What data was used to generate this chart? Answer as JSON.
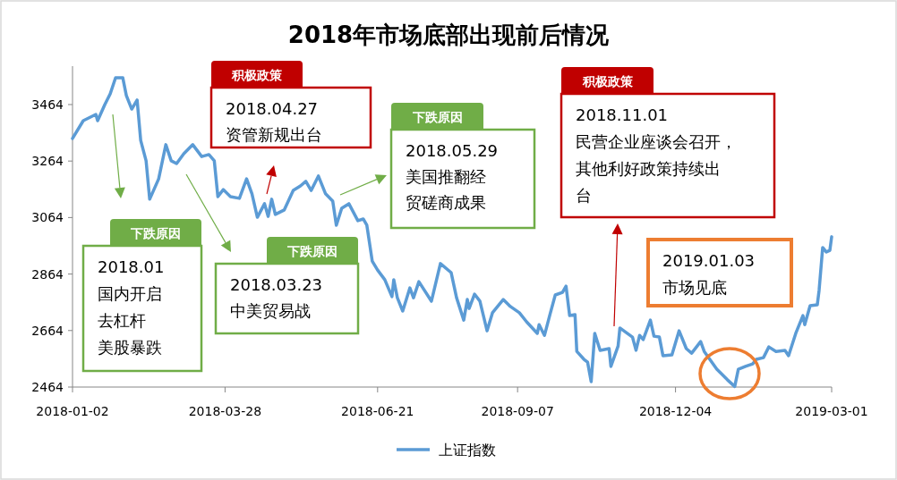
{
  "chart_data": {
    "type": "line",
    "title": "2018年市场底部出现前后情况",
    "x": [
      "2018-01-02",
      "2018-01-08",
      "2018-01-15",
      "2018-01-16",
      "2018-01-20",
      "2018-01-23",
      "2018-01-26",
      "2018-01-30",
      "2018-02-01",
      "2018-02-04",
      "2018-02-07",
      "2018-02-09",
      "2018-02-12",
      "2018-02-14",
      "2018-02-19",
      "2018-02-23",
      "2018-02-26",
      "2018-03-01",
      "2018-03-05",
      "2018-03-10",
      "2018-03-15",
      "2018-03-19",
      "2018-03-22",
      "2018-03-24",
      "2018-03-27",
      "2018-03-31",
      "2018-04-05",
      "2018-04-09",
      "2018-04-12",
      "2018-04-15",
      "2018-04-19",
      "2018-04-21",
      "2018-04-23",
      "2018-04-25",
      "2018-04-30",
      "2018-05-05",
      "2018-05-09",
      "2018-05-12",
      "2018-05-15",
      "2018-05-19",
      "2018-05-23",
      "2018-05-27",
      "2018-05-29",
      "2018-06-01",
      "2018-06-05",
      "2018-06-10",
      "2018-06-13",
      "2018-06-15",
      "2018-06-18",
      "2018-06-21",
      "2018-06-25",
      "2018-06-29",
      "2018-06-30",
      "2018-07-02",
      "2018-07-05",
      "2018-07-09",
      "2018-07-11",
      "2018-07-14",
      "2018-07-21",
      "2018-07-26",
      "2018-08-01",
      "2018-08-04",
      "2018-08-08",
      "2018-08-10",
      "2018-08-11",
      "2018-08-14",
      "2018-08-17",
      "2018-08-21",
      "2018-08-24",
      "2018-08-30",
      "2018-09-03",
      "2018-09-08",
      "2018-09-12",
      "2018-09-18",
      "2018-09-19",
      "2018-09-22",
      "2018-09-25",
      "2018-09-28",
      "2018-10-02",
      "2018-10-04",
      "2018-10-06",
      "2018-10-09",
      "2018-10-10",
      "2018-10-14",
      "2018-10-16",
      "2018-10-18",
      "2018-10-20",
      "2018-10-23",
      "2018-10-28",
      "2018-10-29",
      "2018-11-02",
      "2018-11-03",
      "2018-11-10",
      "2018-11-12",
      "2018-11-14",
      "2018-11-16",
      "2018-11-20",
      "2018-11-22",
      "2018-11-25",
      "2018-11-27",
      "2018-12-02",
      "2018-12-06",
      "2018-12-10",
      "2018-12-13",
      "2018-12-18",
      "2018-12-20",
      "2018-12-27",
      "2019-01-02",
      "2019-01-06",
      "2019-01-08",
      "2019-01-12",
      "2019-01-16",
      "2019-01-18",
      "2019-01-22",
      "2019-01-25",
      "2019-01-29",
      "2019-02-03",
      "2019-02-05",
      "2019-02-09",
      "2019-02-13",
      "2019-02-14",
      "2019-02-17",
      "2019-02-21",
      "2019-02-22",
      "2019-02-24",
      "2019-02-26",
      "2019-02-28",
      "2019-03-01"
    ],
    "series": [
      {
        "name": "上证指数",
        "color": "#5b9bd5",
        "values": [
          3344,
          3407,
          3429,
          3407,
          3464,
          3502,
          3559,
          3559,
          3496,
          3448,
          3480,
          3337,
          3265,
          3129,
          3201,
          3322,
          3265,
          3255,
          3290,
          3322,
          3280,
          3287,
          3265,
          3138,
          3163,
          3138,
          3132,
          3201,
          3148,
          3065,
          3113,
          3068,
          3129,
          3075,
          3091,
          3160,
          3176,
          3192,
          3160,
          3211,
          3148,
          3122,
          3037,
          3097,
          3113,
          3053,
          3059,
          3037,
          2910,
          2878,
          2844,
          2784,
          2844,
          2780,
          2733,
          2815,
          2780,
          2837,
          2768,
          2901,
          2869,
          2780,
          2701,
          2774,
          2742,
          2793,
          2768,
          2663,
          2727,
          2774,
          2749,
          2727,
          2695,
          2654,
          2685,
          2647,
          2720,
          2790,
          2799,
          2821,
          2717,
          2720,
          2590,
          2562,
          2552,
          2483,
          2654,
          2594,
          2600,
          2537,
          2609,
          2673,
          2641,
          2594,
          2647,
          2632,
          2701,
          2644,
          2641,
          2575,
          2578,
          2663,
          2600,
          2584,
          2625,
          2590,
          2527,
          2489,
          2466,
          2527,
          2537,
          2546,
          2562,
          2568,
          2606,
          2590,
          2594,
          2575,
          2654,
          2717,
          2685,
          2752,
          2755,
          2806,
          2958,
          2942,
          2948,
          2996
        ]
      }
    ],
    "xlim": [
      "2018-01-02",
      "2019-03-01"
    ],
    "xticks": [
      "2018-01-02",
      "2018-03-28",
      "2018-06-21",
      "2018-09-07",
      "2018-12-04",
      "2019-03-01"
    ],
    "ylim": [
      2464,
      3600
    ],
    "yticks": [
      2464,
      2664,
      2864,
      3064,
      3264,
      3464
    ],
    "grid": false,
    "legend": "bottom",
    "marker": "none",
    "line_style": "solid",
    "annotations": [
      "下跌原因",
      "2018.01",
      "国内开启去杠杆美股暴跌",
      "下跌原因",
      "2018.03.23",
      "中美贸易战",
      "积极政策",
      "2018.04.27",
      "资管新规出台",
      "下跌原因",
      "2018.05.29",
      "美国推翻经贸磋商成果",
      "积极政策",
      "2018.11.01",
      "民营企业座谈会召开，其他利好政策持续出台",
      "2019.01.03",
      "市场见底"
    ]
  }
}
